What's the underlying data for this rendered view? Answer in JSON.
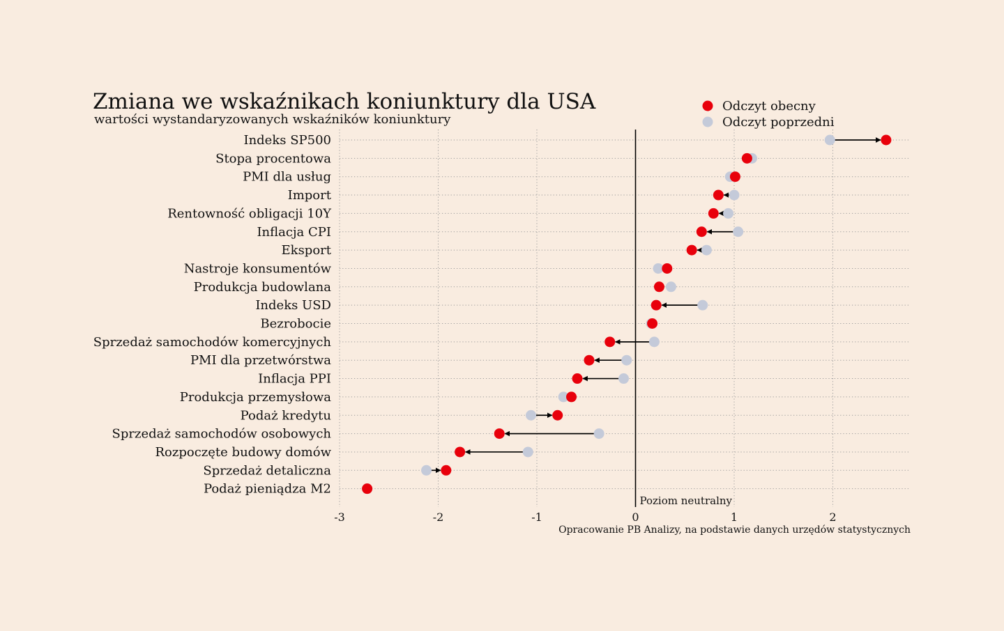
{
  "chart_data": {
    "type": "dumbbell",
    "title": "Zmiana we wskaźnikach koniunktury dla USA",
    "subtitle": "wartości wystandaryzowanych wskaźników koniunktury",
    "source": "Opracowanie PB Analizy, na podstawie danych urzędów statystycznych",
    "zero_label": "Poziom neutralny",
    "xlim": [
      -3,
      2.8
    ],
    "xticks": [
      -3,
      -2,
      -1,
      0,
      1,
      2
    ],
    "grid": "dotted horizontal and vertical",
    "legend_position": "top-right",
    "legend": [
      {
        "name": "Odczyt obecny",
        "color": "#e8000b"
      },
      {
        "name": "Odczyt poprzedni",
        "color": "#c4cad9"
      }
    ],
    "colors": {
      "current": "#e8000b",
      "previous": "#c4cad9",
      "background": "#f9ece0",
      "arrow": "#000000"
    },
    "categories": [
      "Indeks SP500",
      "Stopa procentowa",
      "PMI dla usług",
      "Import",
      "Rentowność obligacji 10Y",
      "Inflacja CPI",
      "Eksport",
      "Nastroje konsumentów",
      "Produkcja budowlana",
      "Indeks USD",
      "Bezrobocie",
      "Sprzedaż samochodów komercyjnych",
      "PMI dla przetwórstwa",
      "Inflacja PPI",
      "Produkcja przemysłowa",
      "Podaż kredytu",
      "Sprzedaż samochodów osobowych",
      "Rozpoczęte budowy domów",
      "Sprzedaż detaliczna",
      "Podaż pieniądza M2"
    ],
    "series": [
      {
        "name": "Odczyt obecny",
        "values": [
          2.54,
          1.13,
          1.01,
          0.84,
          0.79,
          0.67,
          0.57,
          0.32,
          0.24,
          0.21,
          0.17,
          -0.26,
          -0.47,
          -0.59,
          -0.65,
          -0.79,
          -1.38,
          -1.78,
          -1.92,
          -2.72
        ]
      },
      {
        "name": "Odczyt poprzedni",
        "values": [
          1.97,
          1.18,
          0.96,
          1.0,
          0.94,
          1.04,
          0.72,
          0.23,
          0.36,
          0.68,
          0.16,
          0.19,
          -0.09,
          -0.12,
          -0.73,
          -1.06,
          -0.37,
          -1.09,
          -2.12,
          -2.72
        ]
      }
    ]
  }
}
